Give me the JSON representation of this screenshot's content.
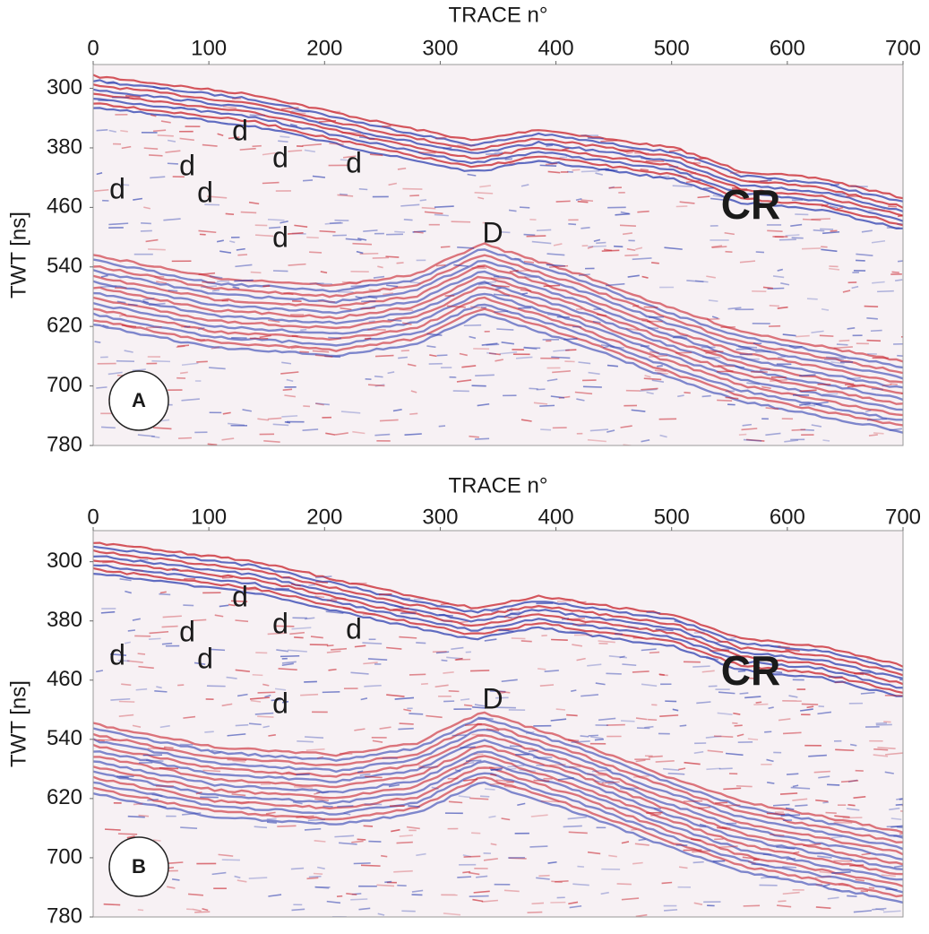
{
  "panels": [
    {
      "x_label": "TRACE n°",
      "y_label": "TWT [ns]",
      "xlim": [
        0,
        700
      ],
      "ylim": [
        268,
        780
      ],
      "xticks": [
        0,
        100,
        200,
        300,
        400,
        500,
        600,
        700
      ],
      "yticks": [
        300,
        380,
        460,
        540,
        620,
        700,
        780
      ],
      "annotations": [
        "d",
        "d",
        "d",
        "d",
        "d",
        "d",
        "d",
        "D",
        "CR"
      ],
      "panel_label": "A"
    },
    {
      "x_label": "TRACE n°",
      "y_label": "TWT [ns]",
      "xlim": [
        0,
        700
      ],
      "ylim": [
        258,
        780
      ],
      "xticks": [
        0,
        100,
        200,
        300,
        400,
        500,
        600,
        700
      ],
      "yticks": [
        300,
        380,
        460,
        540,
        620,
        700,
        780
      ],
      "annotations": [
        "d",
        "d",
        "d",
        "d",
        "d",
        "d",
        "d",
        "D",
        "CR"
      ],
      "panel_label": "B"
    }
  ]
}
